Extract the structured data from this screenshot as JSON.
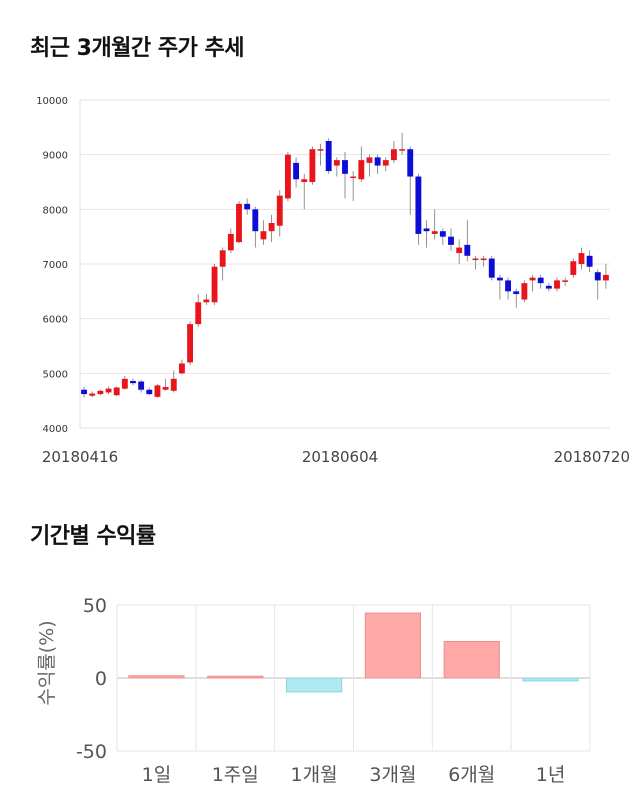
{
  "titles": {
    "price": "최근 3개월간 주가 추세",
    "returns": "기간별 수익률"
  },
  "colors": {
    "up": "#e8161b",
    "down": "#0d0dd8",
    "positive_bar": "#ffa8a8",
    "negative_bar": "#aeeaf2",
    "grid": "#e6e6e6"
  },
  "chart_data": [
    {
      "type": "candlestick",
      "title": "최근 3개월간 주가 추세",
      "ylim": [
        4000,
        10000
      ],
      "yticks": [
        4000,
        5000,
        6000,
        7000,
        8000,
        9000,
        10000
      ],
      "xtick_labels": [
        "20180416",
        "20180604",
        "20180720"
      ],
      "grid": true,
      "candles": [
        [
          4700,
          4620,
          4750,
          4560
        ],
        [
          4590,
          4630,
          4670,
          4560
        ],
        [
          4620,
          4680,
          4700,
          4600
        ],
        [
          4650,
          4720,
          4760,
          4620
        ],
        [
          4600,
          4740,
          4760,
          4580
        ],
        [
          4720,
          4900,
          4950,
          4700
        ],
        [
          4860,
          4820,
          4900,
          4780
        ],
        [
          4850,
          4700,
          4880,
          4650
        ],
        [
          4700,
          4620,
          4740,
          4600
        ],
        [
          4570,
          4780,
          4800,
          4550
        ],
        [
          4700,
          4750,
          4900,
          4680
        ],
        [
          4680,
          4900,
          5050,
          4650
        ],
        [
          5000,
          5180,
          5250,
          4980
        ],
        [
          5200,
          5900,
          5950,
          5150
        ],
        [
          5900,
          6300,
          6450,
          5850
        ],
        [
          6300,
          6350,
          6450,
          6250
        ],
        [
          6300,
          6950,
          7000,
          6250
        ],
        [
          6950,
          7250,
          7300,
          6700
        ],
        [
          7250,
          7550,
          7650,
          7200
        ],
        [
          7400,
          8100,
          8150,
          7380
        ],
        [
          8100,
          8000,
          8200,
          7900
        ],
        [
          8000,
          7600,
          8050,
          7300
        ],
        [
          7450,
          7600,
          7800,
          7350
        ],
        [
          7600,
          7750,
          7900,
          7400
        ],
        [
          7700,
          8250,
          8350,
          7500
        ],
        [
          8200,
          9000,
          9050,
          8150
        ],
        [
          8850,
          8550,
          8950,
          8400
        ],
        [
          8500,
          8550,
          8650,
          8000
        ],
        [
          8500,
          9100,
          9150,
          8450
        ],
        [
          9100,
          9100,
          9200,
          8800
        ],
        [
          9250,
          8700,
          9300,
          8650
        ],
        [
          8800,
          8900,
          8950,
          8600
        ],
        [
          8900,
          8650,
          9050,
          8200
        ],
        [
          8600,
          8600,
          8700,
          8150
        ],
        [
          8550,
          8900,
          9150,
          8500
        ],
        [
          8850,
          8950,
          9000,
          8600
        ],
        [
          8950,
          8800,
          9000,
          8650
        ],
        [
          8800,
          8900,
          8950,
          8700
        ],
        [
          8900,
          9100,
          9250,
          8850
        ],
        [
          9100,
          9100,
          9400,
          9000
        ],
        [
          9100,
          8600,
          9150,
          7900
        ],
        [
          8600,
          7550,
          8650,
          7350
        ],
        [
          7650,
          7600,
          7800,
          7300
        ],
        [
          7550,
          7600,
          8000,
          7450
        ],
        [
          7600,
          7500,
          7650,
          7350
        ],
        [
          7500,
          7350,
          7650,
          7250
        ],
        [
          7200,
          7300,
          7450,
          7000
        ],
        [
          7350,
          7150,
          7800,
          7050
        ],
        [
          7100,
          7100,
          7150,
          6900
        ],
        [
          7100,
          7100,
          7150,
          6950
        ],
        [
          7100,
          6750,
          7150,
          6700
        ],
        [
          6750,
          6700,
          6800,
          6350
        ],
        [
          6700,
          6500,
          6750,
          6350
        ],
        [
          6500,
          6450,
          6550,
          6200
        ],
        [
          6350,
          6650,
          6700,
          6300
        ],
        [
          6700,
          6750,
          6800,
          6500
        ],
        [
          6750,
          6650,
          6800,
          6550
        ],
        [
          6600,
          6550,
          6650,
          6500
        ],
        [
          6550,
          6700,
          6750,
          6500
        ],
        [
          6700,
          6700,
          6750,
          6600
        ],
        [
          6800,
          7050,
          7100,
          6750
        ],
        [
          7000,
          7200,
          7300,
          6900
        ],
        [
          7150,
          6950,
          7250,
          6850
        ],
        [
          6850,
          6700,
          6900,
          6350
        ],
        [
          6700,
          6800,
          7000,
          6550
        ]
      ]
    },
    {
      "type": "bar",
      "title": "기간별 수익률",
      "ylabel": "수익률(%)",
      "ylim": [
        -50,
        50
      ],
      "yticks": [
        -50,
        0,
        50
      ],
      "categories": [
        "1일",
        "1주일",
        "1개월",
        "3개월",
        "6개월",
        "1년"
      ],
      "values": [
        1.5,
        1.2,
        -9.5,
        44.5,
        25.0,
        -2.0
      ],
      "grid": true
    }
  ]
}
